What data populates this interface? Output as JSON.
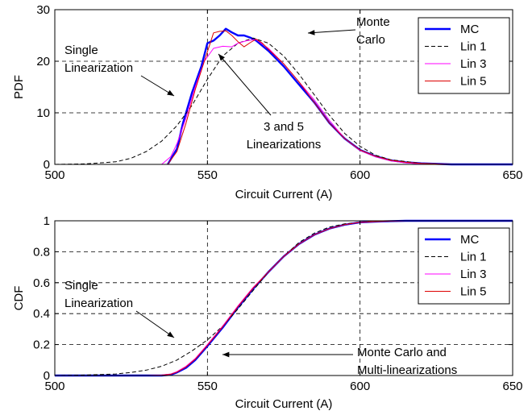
{
  "chart_data": [
    {
      "type": "line",
      "xlabel": "Circuit Current (A)",
      "ylabel": "PDF",
      "xlim": [
        500,
        650
      ],
      "ylim": [
        0,
        30
      ],
      "xticks": [
        "500",
        "550",
        "600",
        "650"
      ],
      "yticks": [
        "0",
        "10",
        "20",
        "30"
      ],
      "grid": true,
      "legend": "top-right",
      "series": [
        {
          "name": "MC",
          "color": "#0000ff",
          "style": "solid-thick",
          "x": [
            537,
            540,
            542,
            545,
            548,
            550,
            552,
            554,
            556,
            558,
            560,
            562,
            564,
            566,
            568,
            570,
            575,
            580,
            585,
            590,
            595,
            600,
            605,
            610,
            615,
            620,
            630,
            640,
            650
          ],
          "y": [
            0,
            3,
            8,
            14,
            19,
            23.5,
            24,
            25,
            26.3,
            25.6,
            25,
            25,
            24.6,
            24,
            23,
            22,
            19,
            15.5,
            12,
            8,
            5,
            2.8,
            1.6,
            0.8,
            0.4,
            0.2,
            0,
            0,
            0
          ]
        },
        {
          "name": "Lin 1",
          "color": "#000000",
          "style": "dashed",
          "x": [
            500,
            510,
            520,
            525,
            530,
            535,
            540,
            545,
            550,
            555,
            560,
            565,
            570,
            575,
            580,
            585,
            590,
            595,
            600,
            605,
            610,
            620,
            630,
            640,
            650
          ],
          "y": [
            0,
            0.1,
            0.5,
            1.2,
            2.5,
            4.5,
            7.5,
            11.5,
            16.5,
            21,
            23.5,
            24.5,
            23.5,
            21,
            17.5,
            13.5,
            9.5,
            6,
            3.5,
            1.8,
            0.9,
            0.2,
            0,
            0,
            0
          ]
        },
        {
          "name": "Lin 3",
          "color": "#ff00ff",
          "style": "solid",
          "x": [
            535,
            538,
            540,
            543,
            546,
            549,
            552,
            555,
            558,
            560,
            563,
            566,
            570,
            575,
            580,
            585,
            590,
            595,
            600,
            605,
            610,
            615,
            620,
            630,
            650
          ],
          "y": [
            0,
            1.5,
            4,
            9,
            15,
            20,
            22.5,
            22.9,
            22.8,
            23.5,
            24,
            24.2,
            22.5,
            19.5,
            16,
            12.5,
            8.5,
            5,
            2.7,
            1.5,
            0.7,
            0.3,
            0.1,
            0,
            0
          ]
        },
        {
          "name": "Lin 5",
          "color": "#dd0000",
          "style": "solid",
          "x": [
            537,
            540,
            543,
            546,
            549,
            552,
            554,
            556,
            558,
            560,
            562,
            564,
            566,
            568,
            570,
            575,
            580,
            585,
            590,
            595,
            600,
            605,
            610,
            615,
            620,
            630,
            650
          ],
          "y": [
            0,
            2.5,
            8,
            14.5,
            20,
            25.5,
            25.8,
            25.9,
            25,
            23.8,
            22.8,
            23.6,
            24.3,
            23.5,
            22.3,
            19.5,
            16,
            12,
            8,
            5,
            2.8,
            1.6,
            0.8,
            0.4,
            0.2,
            0,
            0
          ]
        }
      ],
      "annotations": [
        {
          "lines": [
            "Monte",
            "Carlo"
          ]
        },
        {
          "lines": [
            "Single",
            "Linearization"
          ]
        },
        {
          "lines": [
            "3 and 5",
            "Linearizations"
          ]
        }
      ]
    },
    {
      "type": "line",
      "xlabel": "Circuit Current (A)",
      "ylabel": "CDF",
      "xlim": [
        500,
        650
      ],
      "ylim": [
        0,
        1
      ],
      "xticks": [
        "500",
        "550",
        "600",
        "650"
      ],
      "yticks": [
        "0",
        "0.2",
        "0.4",
        "0.6",
        "0.8",
        "1"
      ],
      "grid": true,
      "legend": "right",
      "series": [
        {
          "name": "MC",
          "color": "#0000ff",
          "style": "solid-thick",
          "x": [
            500,
            530,
            535,
            538,
            540,
            543,
            546,
            550,
            555,
            560,
            565,
            570,
            575,
            580,
            585,
            590,
            595,
            600,
            605,
            610,
            615,
            620,
            650
          ],
          "y": [
            0,
            0,
            0,
            0.005,
            0.02,
            0.05,
            0.1,
            0.19,
            0.31,
            0.44,
            0.56,
            0.67,
            0.77,
            0.85,
            0.91,
            0.95,
            0.975,
            0.99,
            0.995,
            0.998,
            1,
            1,
            1
          ]
        },
        {
          "name": "Lin 1",
          "color": "#000000",
          "style": "dashed",
          "x": [
            500,
            510,
            520,
            525,
            530,
            535,
            540,
            545,
            550,
            555,
            560,
            565,
            570,
            575,
            580,
            585,
            590,
            595,
            600,
            605,
            610,
            615,
            620,
            650
          ],
          "y": [
            0,
            0.003,
            0.01,
            0.02,
            0.035,
            0.06,
            0.1,
            0.16,
            0.23,
            0.32,
            0.43,
            0.55,
            0.67,
            0.77,
            0.86,
            0.92,
            0.96,
            0.98,
            0.99,
            0.997,
            1,
            1,
            1,
            1
          ]
        },
        {
          "name": "Lin 3",
          "color": "#ff00ff",
          "style": "solid",
          "x": [
            500,
            530,
            535,
            538,
            540,
            543,
            546,
            550,
            555,
            560,
            565,
            570,
            575,
            580,
            585,
            590,
            595,
            600,
            605,
            610,
            615,
            620,
            650
          ],
          "y": [
            0,
            0,
            0.003,
            0.01,
            0.025,
            0.06,
            0.11,
            0.2,
            0.32,
            0.45,
            0.57,
            0.67,
            0.77,
            0.85,
            0.91,
            0.95,
            0.975,
            0.99,
            0.995,
            0.998,
            1,
            1,
            1
          ]
        },
        {
          "name": "Lin 5",
          "color": "#dd0000",
          "style": "solid",
          "x": [
            500,
            530,
            535,
            538,
            540,
            543,
            546,
            550,
            555,
            560,
            565,
            570,
            575,
            580,
            585,
            590,
            595,
            600,
            605,
            610,
            615,
            620,
            650
          ],
          "y": [
            0,
            0,
            0.002,
            0.008,
            0.022,
            0.055,
            0.105,
            0.195,
            0.315,
            0.445,
            0.565,
            0.67,
            0.77,
            0.85,
            0.91,
            0.95,
            0.975,
            0.99,
            0.995,
            0.998,
            1,
            1,
            1
          ]
        }
      ],
      "annotations": [
        {
          "lines": [
            "Single",
            "Linearization"
          ]
        },
        {
          "lines": [
            "Monte Carlo and",
            "Multi-linearizations"
          ]
        }
      ]
    }
  ]
}
